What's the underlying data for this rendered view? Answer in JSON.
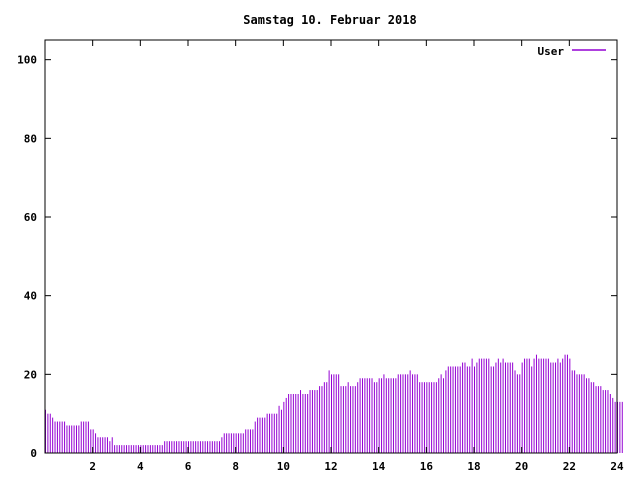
{
  "chart_data": {
    "type": "bar",
    "title": "Samstag 10. Februar 2018",
    "xlabel": "",
    "ylabel": "",
    "xlim": [
      0,
      24
    ],
    "ylim": [
      0,
      105
    ],
    "x_ticks": [
      2,
      4,
      6,
      8,
      10,
      12,
      14,
      16,
      18,
      20,
      22,
      24
    ],
    "y_ticks": [
      0,
      20,
      40,
      60,
      80,
      100
    ],
    "grid": false,
    "legend_position": "top-right",
    "series": [
      {
        "name": "User",
        "color": "#9400d3",
        "x_start": 0,
        "x_step": 0.1,
        "values": [
          11,
          10,
          10,
          9,
          8,
          8,
          8,
          8,
          8,
          7,
          7,
          7,
          7,
          7,
          7,
          8,
          8,
          8,
          8,
          6,
          6,
          5,
          4,
          4,
          4,
          4,
          4,
          3,
          4,
          2,
          2,
          2,
          2,
          2,
          2,
          2,
          2,
          2,
          2,
          2,
          2,
          2,
          2,
          2,
          2,
          2,
          2,
          2,
          2,
          2,
          3,
          3,
          3,
          3,
          3,
          3,
          3,
          3,
          3,
          3,
          3,
          3,
          3,
          3,
          3,
          3,
          3,
          3,
          3,
          3,
          3,
          3,
          3,
          3,
          4,
          5,
          5,
          5,
          5,
          5,
          5,
          5,
          5,
          5,
          6,
          6,
          6,
          6,
          8,
          9,
          9,
          9,
          9,
          10,
          10,
          10,
          10,
          10,
          12,
          11,
          13,
          14,
          15,
          15,
          15,
          15,
          15,
          16,
          15,
          15,
          15,
          16,
          16,
          16,
          16,
          17,
          17,
          18,
          18,
          21,
          20,
          20,
          20,
          20,
          17,
          17,
          17,
          18,
          17,
          17,
          17,
          18,
          19,
          19,
          19,
          19,
          19,
          19,
          18,
          18,
          19,
          19,
          20,
          19,
          19,
          19,
          19,
          19,
          20,
          20,
          20,
          20,
          20,
          21,
          20,
          20,
          20,
          18,
          18,
          18,
          18,
          18,
          18,
          18,
          18,
          19,
          20,
          19,
          21,
          22,
          22,
          22,
          22,
          22,
          22,
          23,
          23,
          22,
          22,
          24,
          22,
          23,
          24,
          24,
          24,
          24,
          24,
          22,
          22,
          23,
          24,
          23,
          24,
          23,
          23,
          23,
          23,
          21,
          20,
          20,
          23,
          24,
          24,
          24,
          22,
          24,
          25,
          24,
          24,
          24,
          24,
          24,
          23,
          23,
          23,
          24,
          23,
          24,
          25,
          25,
          24,
          21,
          21,
          20,
          20,
          20,
          20,
          19,
          19,
          18,
          18,
          17,
          17,
          17,
          16,
          16,
          16,
          15,
          14,
          13,
          13,
          13,
          13
        ]
      }
    ]
  }
}
